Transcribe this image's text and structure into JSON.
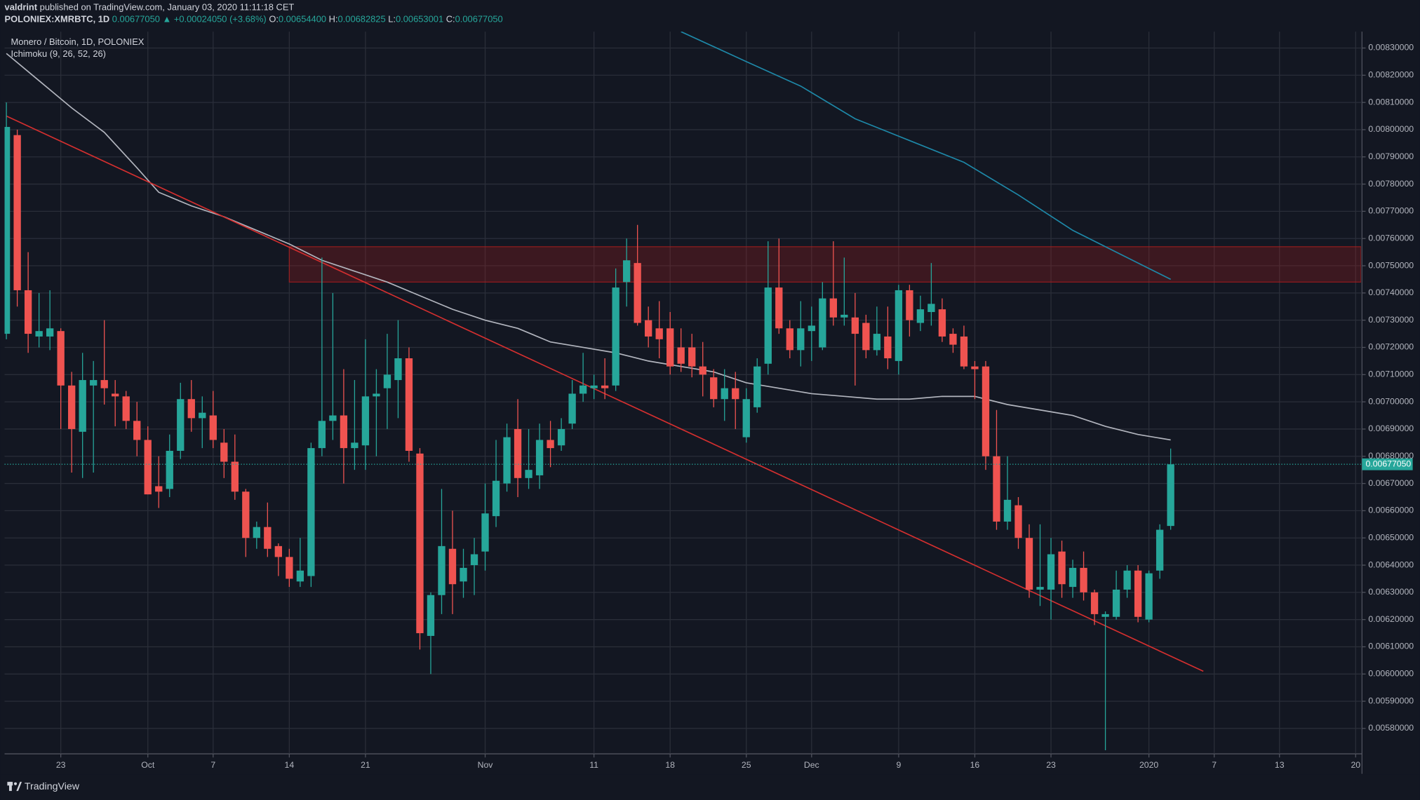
{
  "header": {
    "author": "valdrint",
    "published": "published on TradingView.com, January 03, 2020 11:11:18 CET",
    "symbol": "POLONIEX:XMRBTC, 1D",
    "price": "0.00677050",
    "change": "▲ +0.00024050 (+3.68%)",
    "ohlc": [
      {
        "label": "O:",
        "value": "0.00654400"
      },
      {
        "label": "H:",
        "value": "0.00682825"
      },
      {
        "label": "L:",
        "value": "0.00653001"
      },
      {
        "label": "C:",
        "value": "0.00677050"
      }
    ]
  },
  "legend": {
    "title": "Monero / Bitcoin, 1D, POLONIEX",
    "indicator": "Ichimoku (9, 26, 52, 26)"
  },
  "footer": {
    "brand": "TradingView"
  },
  "chart_data": {
    "type": "candlestick",
    "up_color": "#26a69a",
    "down_color": "#ef5350",
    "grid": true,
    "xlim": [
      "2019-09-18",
      "2020-01-20"
    ],
    "ylim": [
      0.00571,
      0.00836
    ],
    "x": [
      "2019-09-18",
      "2019-09-19",
      "2019-09-20",
      "2019-09-21",
      "2019-09-22",
      "2019-09-23",
      "2019-09-24",
      "2019-09-25",
      "2019-09-26",
      "2019-09-27",
      "2019-09-28",
      "2019-09-29",
      "2019-09-30",
      "2019-10-01",
      "2019-10-02",
      "2019-10-03",
      "2019-10-04",
      "2019-10-05",
      "2019-10-06",
      "2019-10-07",
      "2019-10-08",
      "2019-10-09",
      "2019-10-10",
      "2019-10-11",
      "2019-10-12",
      "2019-10-13",
      "2019-10-14",
      "2019-10-15",
      "2019-10-16",
      "2019-10-17",
      "2019-10-18",
      "2019-10-19",
      "2019-10-20",
      "2019-10-21",
      "2019-10-22",
      "2019-10-23",
      "2019-10-24",
      "2019-10-25",
      "2019-10-26",
      "2019-10-27",
      "2019-10-28",
      "2019-10-29",
      "2019-10-30",
      "2019-10-31",
      "2019-11-01",
      "2019-11-02",
      "2019-11-03",
      "2019-11-04",
      "2019-11-05",
      "2019-11-06",
      "2019-11-07",
      "2019-11-08",
      "2019-11-09",
      "2019-11-10",
      "2019-11-11",
      "2019-11-12",
      "2019-11-13",
      "2019-11-14",
      "2019-11-15",
      "2019-11-16",
      "2019-11-17",
      "2019-11-18",
      "2019-11-19",
      "2019-11-20",
      "2019-11-21",
      "2019-11-22",
      "2019-11-23",
      "2019-11-24",
      "2019-11-25",
      "2019-11-26",
      "2019-11-27",
      "2019-11-28",
      "2019-11-29",
      "2019-11-30",
      "2019-12-01",
      "2019-12-02",
      "2019-12-03",
      "2019-12-04",
      "2019-12-05",
      "2019-12-06",
      "2019-12-07",
      "2019-12-08",
      "2019-12-09",
      "2019-12-10",
      "2019-12-11",
      "2019-12-12",
      "2019-12-13",
      "2019-12-14",
      "2019-12-15",
      "2019-12-16",
      "2019-12-17",
      "2019-12-18",
      "2019-12-19",
      "2019-12-20",
      "2019-12-21",
      "2019-12-22",
      "2019-12-23",
      "2019-12-24",
      "2019-12-25",
      "2019-12-26",
      "2019-12-27",
      "2019-12-28",
      "2019-12-29",
      "2019-12-30",
      "2019-12-31",
      "2020-01-01",
      "2020-01-02",
      "2020-01-03"
    ],
    "open": [
      0.00725,
      0.00798,
      0.00741,
      0.00724,
      0.00724,
      0.00726,
      0.00706,
      0.00689,
      0.00706,
      0.00708,
      0.00703,
      0.00702,
      0.00693,
      0.00686,
      0.00669,
      0.00668,
      0.00682,
      0.00701,
      0.00694,
      0.00695,
      0.00685,
      0.00678,
      0.00667,
      0.0065,
      0.00654,
      0.00647,
      0.00643,
      0.00634,
      0.00636,
      0.00683,
      0.00693,
      0.00695,
      0.00683,
      0.00684,
      0.00702,
      0.00705,
      0.00708,
      0.00716,
      0.00681,
      0.00614,
      0.00629,
      0.00646,
      0.00634,
      0.0064,
      0.00645,
      0.00658,
      0.0067,
      0.0069,
      0.00672,
      0.00673,
      0.00686,
      0.00684,
      0.00692,
      0.00703,
      0.00705,
      0.00706,
      0.00706,
      0.00744,
      0.00751,
      0.0073,
      0.00727,
      0.00727,
      0.0072,
      0.0072,
      0.00713,
      0.00709,
      0.00701,
      0.00705,
      0.00687,
      0.00698,
      0.00714,
      0.00742,
      0.00727,
      0.00719,
      0.00726,
      0.0072,
      0.00738,
      0.00731,
      0.00731,
      0.00729,
      0.00719,
      0.00724,
      0.00715,
      0.00741,
      0.00729,
      0.00733,
      0.00734,
      0.00725,
      0.00724,
      0.00713,
      0.00713,
      0.0068,
      0.00656,
      0.00662,
      0.0065,
      0.00631,
      0.00631,
      0.00645,
      0.00632,
      0.00639,
      0.0063,
      0.00621,
      0.00621,
      0.00631,
      0.00638,
      0.0062,
      0.00638,
      0.006544
    ],
    "high": [
      0.0081,
      0.008,
      0.00755,
      0.0074,
      0.00741,
      0.00727,
      0.00711,
      0.00718,
      0.00715,
      0.0073,
      0.00708,
      0.00704,
      0.007,
      0.00691,
      0.0068,
      0.00688,
      0.00707,
      0.00708,
      0.00702,
      0.00704,
      0.0069,
      0.00688,
      0.00668,
      0.00656,
      0.00663,
      0.00648,
      0.00646,
      0.0065,
      0.00685,
      0.00753,
      0.0074,
      0.00712,
      0.00708,
      0.00723,
      0.00712,
      0.00725,
      0.0073,
      0.0072,
      0.00683,
      0.0063,
      0.00668,
      0.0066,
      0.00646,
      0.0065,
      0.0067,
      0.00686,
      0.00692,
      0.00701,
      0.0069,
      0.00692,
      0.00693,
      0.00694,
      0.00708,
      0.00718,
      0.0071,
      0.00716,
      0.00749,
      0.0076,
      0.00765,
      0.00735,
      0.00737,
      0.00733,
      0.00727,
      0.00725,
      0.00722,
      0.00712,
      0.00712,
      0.00711,
      0.00705,
      0.00716,
      0.00759,
      0.0076,
      0.0073,
      0.00737,
      0.00735,
      0.00744,
      0.00759,
      0.00753,
      0.0074,
      0.00732,
      0.00735,
      0.00735,
      0.00743,
      0.00743,
      0.00739,
      0.00751,
      0.00738,
      0.00727,
      0.00728,
      0.00715,
      0.00715,
      0.00697,
      0.0068,
      0.00665,
      0.00655,
      0.00655,
      0.0065,
      0.00649,
      0.00642,
      0.00645,
      0.00631,
      0.00623,
      0.00638,
      0.0064,
      0.0064,
      0.00638,
      0.00655,
      0.00682825
    ],
    "low": [
      0.00723,
      0.00735,
      0.00718,
      0.0072,
      0.00719,
      0.0069,
      0.00674,
      0.00672,
      0.00674,
      0.00699,
      0.00691,
      0.0069,
      0.0068,
      0.00666,
      0.00661,
      0.00665,
      0.00679,
      0.00689,
      0.00683,
      0.00683,
      0.00672,
      0.00664,
      0.00643,
      0.00646,
      0.00643,
      0.00636,
      0.00632,
      0.00632,
      0.00632,
      0.0068,
      0.00686,
      0.0067,
      0.00675,
      0.00675,
      0.0068,
      0.0069,
      0.00694,
      0.00678,
      0.00609,
      0.006,
      0.00622,
      0.00622,
      0.00628,
      0.00629,
      0.00638,
      0.00654,
      0.00667,
      0.00665,
      0.00668,
      0.00668,
      0.00676,
      0.00682,
      0.0069,
      0.007,
      0.00701,
      0.00701,
      0.00704,
      0.00735,
      0.00728,
      0.0072,
      0.00716,
      0.0071,
      0.00711,
      0.00709,
      0.00702,
      0.00698,
      0.00693,
      0.0069,
      0.00685,
      0.00696,
      0.0071,
      0.00725,
      0.00716,
      0.00713,
      0.00715,
      0.00719,
      0.00728,
      0.00728,
      0.00706,
      0.00716,
      0.00717,
      0.00712,
      0.0071,
      0.00724,
      0.00726,
      0.00728,
      0.00722,
      0.00718,
      0.00712,
      0.00701,
      0.00675,
      0.00653,
      0.00653,
      0.00646,
      0.00628,
      0.00625,
      0.0062,
      0.00628,
      0.00628,
      0.00627,
      0.00618,
      0.00572,
      0.0062,
      0.00628,
      0.00619,
      0.00619,
      0.00635,
      0.00653001
    ],
    "close": [
      0.00801,
      0.00741,
      0.00725,
      0.00726,
      0.00727,
      0.00706,
      0.0069,
      0.00708,
      0.00708,
      0.00705,
      0.00702,
      0.00693,
      0.00686,
      0.00666,
      0.00667,
      0.00682,
      0.00701,
      0.00694,
      0.00696,
      0.00686,
      0.00678,
      0.00667,
      0.0065,
      0.00654,
      0.00646,
      0.00643,
      0.00635,
      0.00638,
      0.00683,
      0.00693,
      0.00695,
      0.00683,
      0.00685,
      0.00702,
      0.00703,
      0.0071,
      0.00716,
      0.00682,
      0.00615,
      0.00629,
      0.00647,
      0.00633,
      0.00639,
      0.00644,
      0.00659,
      0.00671,
      0.00687,
      0.00672,
      0.00675,
      0.00686,
      0.00683,
      0.0069,
      0.00703,
      0.00706,
      0.00706,
      0.00705,
      0.00742,
      0.00752,
      0.00729,
      0.00724,
      0.00723,
      0.00713,
      0.00714,
      0.00713,
      0.0071,
      0.00701,
      0.00705,
      0.00701,
      0.00701,
      0.00713,
      0.00742,
      0.00727,
      0.00719,
      0.00727,
      0.00728,
      0.00738,
      0.00731,
      0.00732,
      0.00725,
      0.00719,
      0.00725,
      0.00716,
      0.00741,
      0.0073,
      0.00734,
      0.00736,
      0.00724,
      0.00721,
      0.00713,
      0.00712,
      0.0068,
      0.00656,
      0.00664,
      0.0065,
      0.00631,
      0.00632,
      0.00644,
      0.00633,
      0.00639,
      0.0063,
      0.00622,
      0.00622,
      0.00631,
      0.00638,
      0.00621,
      0.00637,
      0.00653,
      0.0067705
    ],
    "lines": [
      {
        "color": "#b2b5be",
        "x": [
          "2019-09-18",
          "2019-09-21",
          "2019-09-24",
          "2019-09-27",
          "2019-09-30",
          "2019-10-02",
          "2019-10-05",
          "2019-10-08",
          "2019-10-11",
          "2019-10-14",
          "2019-10-17",
          "2019-10-20",
          "2019-10-23",
          "2019-10-26",
          "2019-10-29",
          "2019-11-01",
          "2019-11-04",
          "2019-11-07",
          "2019-11-10",
          "2019-11-13",
          "2019-11-16",
          "2019-11-19",
          "2019-11-22",
          "2019-11-25",
          "2019-11-28",
          "2019-12-01",
          "2019-12-04",
          "2019-12-07",
          "2019-12-10",
          "2019-12-13",
          "2019-12-16",
          "2019-12-19",
          "2019-12-22",
          "2019-12-25",
          "2019-12-28",
          "2019-12-31",
          "2020-01-03"
        ],
        "values": [
          0.00828,
          0.00818,
          0.00808,
          0.00799,
          0.00786,
          0.00777,
          0.00772,
          0.00768,
          0.00763,
          0.00758,
          0.00752,
          0.00748,
          0.00744,
          0.00739,
          0.00734,
          0.0073,
          0.00727,
          0.00722,
          0.0072,
          0.00718,
          0.00715,
          0.00713,
          0.00711,
          0.00707,
          0.00705,
          0.00703,
          0.00702,
          0.00701,
          0.00701,
          0.00702,
          0.00702,
          0.00699,
          0.00697,
          0.00695,
          0.00691,
          0.00688,
          0.00686
        ]
      },
      {
        "color": "#1e88a8",
        "x": [
          "2019-11-19",
          "2019-11-25",
          "2019-11-30",
          "2019-12-05",
          "2019-12-10",
          "2019-12-15",
          "2019-12-20",
          "2019-12-25",
          "2019-12-30",
          "2020-01-03"
        ],
        "values": [
          0.00836,
          0.00825,
          0.00816,
          0.00804,
          0.00796,
          0.00788,
          0.00776,
          0.00763,
          0.00753,
          0.00745
        ]
      },
      {
        "color": "#d32f2f",
        "x": [
          "2019-09-18",
          "2020-01-06"
        ],
        "values": [
          0.00805,
          0.00601
        ]
      }
    ],
    "zones": [
      {
        "color": "#b71c1c",
        "x": [
          "2019-10-14",
          "2020-01-20"
        ],
        "y": [
          0.00744,
          0.00757
        ]
      }
    ],
    "last_price": {
      "value": 0.0067705,
      "label": "0.00677050",
      "color": "#26a69a"
    },
    "xticks": [
      {
        "value": "2019-09-23",
        "label": "23"
      },
      {
        "value": "2019-10-01",
        "label": "Oct"
      },
      {
        "value": "2019-10-07",
        "label": "7"
      },
      {
        "value": "2019-10-14",
        "label": "14"
      },
      {
        "value": "2019-10-21",
        "label": "21"
      },
      {
        "value": "2019-11-01",
        "label": "Nov"
      },
      {
        "value": "2019-11-11",
        "label": "11"
      },
      {
        "value": "2019-11-18",
        "label": "18"
      },
      {
        "value": "2019-11-25",
        "label": "25"
      },
      {
        "value": "2019-12-01",
        "label": "Dec"
      },
      {
        "value": "2019-12-09",
        "label": "9"
      },
      {
        "value": "2019-12-16",
        "label": "16"
      },
      {
        "value": "2019-12-23",
        "label": "23"
      },
      {
        "value": "2020-01-01",
        "label": "2020"
      },
      {
        "value": "2020-01-07",
        "label": "7"
      },
      {
        "value": "2020-01-13",
        "label": "13"
      },
      {
        "value": "2020-01-20",
        "label": "20"
      }
    ],
    "yticks": [
      {
        "value": 0.0058,
        "label": "0.00580000"
      },
      {
        "value": 0.0059,
        "label": "0.00590000"
      },
      {
        "value": 0.006,
        "label": "0.00600000"
      },
      {
        "value": 0.0061,
        "label": "0.00610000"
      },
      {
        "value": 0.0062,
        "label": "0.00620000"
      },
      {
        "value": 0.0063,
        "label": "0.00630000"
      },
      {
        "value": 0.0064,
        "label": "0.00640000"
      },
      {
        "value": 0.0065,
        "label": "0.00650000"
      },
      {
        "value": 0.0066,
        "label": "0.00660000"
      },
      {
        "value": 0.0067,
        "label": "0.00670000"
      },
      {
        "value": 0.0068,
        "label": "0.00680000"
      },
      {
        "value": 0.0069,
        "label": "0.00690000"
      },
      {
        "value": 0.007,
        "label": "0.00700000"
      },
      {
        "value": 0.0071,
        "label": "0.00710000"
      },
      {
        "value": 0.0072,
        "label": "0.00720000"
      },
      {
        "value": 0.0073,
        "label": "0.00730000"
      },
      {
        "value": 0.0074,
        "label": "0.00740000"
      },
      {
        "value": 0.0075,
        "label": "0.00750000"
      },
      {
        "value": 0.0076,
        "label": "0.00760000"
      },
      {
        "value": 0.0077,
        "label": "0.00770000"
      },
      {
        "value": 0.0078,
        "label": "0.00780000"
      },
      {
        "value": 0.0079,
        "label": "0.00790000"
      },
      {
        "value": 0.008,
        "label": "0.00800000"
      },
      {
        "value": 0.0081,
        "label": "0.00810000"
      },
      {
        "value": 0.0082,
        "label": "0.00820000"
      },
      {
        "value": 0.0083,
        "label": "0.00830000"
      }
    ]
  }
}
